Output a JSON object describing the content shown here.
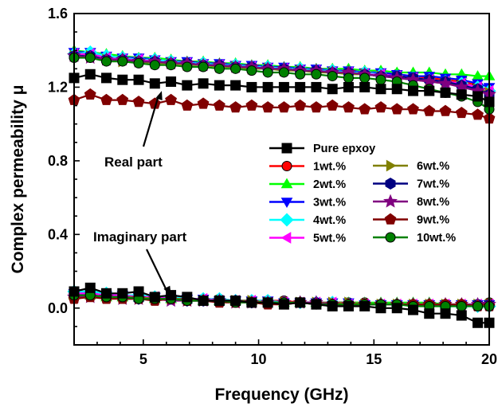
{
  "chart_data": {
    "type": "line",
    "xlabel": "Frequency (GHz)",
    "ylabel": "Complex permeability μ",
    "xlim": [
      2,
      20
    ],
    "ylim": [
      -0.2,
      1.6
    ],
    "xticks": [
      5,
      10,
      15,
      20
    ],
    "yticks": [
      0.0,
      0.4,
      0.8,
      1.2,
      1.6
    ],
    "ytick_labels": [
      "0.0",
      "0.4",
      "0.8",
      "1.2",
      "1.6"
    ],
    "grid": false,
    "legend_position": "center-right",
    "annotations": [
      {
        "text": "Real part",
        "target": [
          5.8,
          1.18
        ]
      },
      {
        "text": "Imaginary part",
        "target": [
          6.2,
          0.07
        ]
      }
    ],
    "x": [
      2.0,
      2.7,
      3.4,
      4.1,
      4.8,
      5.5,
      6.2,
      6.9,
      7.6,
      8.3,
      9.0,
      9.7,
      10.4,
      11.1,
      11.8,
      12.5,
      13.2,
      13.9,
      14.6,
      15.3,
      16.0,
      16.7,
      17.4,
      18.1,
      18.8,
      19.5,
      20.0
    ],
    "series": [
      {
        "name": "Pure epxoy",
        "color": "#000000",
        "marker": "square",
        "real": [
          1.25,
          1.27,
          1.25,
          1.24,
          1.24,
          1.22,
          1.23,
          1.21,
          1.22,
          1.21,
          1.21,
          1.2,
          1.2,
          1.2,
          1.2,
          1.2,
          1.19,
          1.2,
          1.2,
          1.19,
          1.19,
          1.18,
          1.18,
          1.17,
          1.16,
          1.15,
          1.12
        ],
        "imag": [
          0.09,
          0.11,
          0.08,
          0.08,
          0.09,
          0.06,
          0.07,
          0.06,
          0.04,
          0.04,
          0.04,
          0.03,
          0.03,
          0.02,
          0.03,
          0.02,
          0.01,
          0.01,
          0.01,
          0.0,
          0.0,
          -0.01,
          -0.03,
          -0.03,
          -0.04,
          -0.08,
          -0.08
        ]
      },
      {
        "name": "1wt.%",
        "color": "#ff0000",
        "marker": "circle",
        "real": [
          1.38,
          1.38,
          1.36,
          1.35,
          1.35,
          1.34,
          1.34,
          1.33,
          1.33,
          1.32,
          1.32,
          1.31,
          1.31,
          1.3,
          1.3,
          1.29,
          1.29,
          1.28,
          1.28,
          1.27,
          1.27,
          1.26,
          1.25,
          1.24,
          1.23,
          1.21,
          1.18
        ],
        "imag": [
          0.08,
          0.08,
          0.07,
          0.07,
          0.07,
          0.06,
          0.06,
          0.05,
          0.05,
          0.05,
          0.04,
          0.04,
          0.04,
          0.04,
          0.03,
          0.03,
          0.03,
          0.03,
          0.03,
          0.02,
          0.02,
          0.02,
          0.02,
          0.02,
          0.02,
          0.02,
          0.03
        ]
      },
      {
        "name": "2wt.%",
        "color": "#00ff00",
        "marker": "triangle-up",
        "real": [
          1.4,
          1.39,
          1.38,
          1.37,
          1.36,
          1.36,
          1.35,
          1.34,
          1.34,
          1.33,
          1.33,
          1.32,
          1.32,
          1.31,
          1.31,
          1.3,
          1.3,
          1.3,
          1.29,
          1.29,
          1.28,
          1.28,
          1.28,
          1.27,
          1.27,
          1.26,
          1.26
        ],
        "imag": [
          0.07,
          0.07,
          0.06,
          0.06,
          0.06,
          0.05,
          0.05,
          0.05,
          0.04,
          0.04,
          0.04,
          0.04,
          0.04,
          0.03,
          0.03,
          0.03,
          0.03,
          0.03,
          0.03,
          0.03,
          0.03,
          0.03,
          0.03,
          0.02,
          0.02,
          0.02,
          0.03
        ]
      },
      {
        "name": "3wt.%",
        "color": "#0000ff",
        "marker": "triangle-down",
        "real": [
          1.39,
          1.39,
          1.37,
          1.36,
          1.36,
          1.35,
          1.34,
          1.34,
          1.33,
          1.33,
          1.32,
          1.32,
          1.31,
          1.31,
          1.3,
          1.3,
          1.29,
          1.29,
          1.28,
          1.28,
          1.27,
          1.26,
          1.26,
          1.25,
          1.24,
          1.22,
          1.2
        ],
        "imag": [
          0.08,
          0.08,
          0.07,
          0.07,
          0.06,
          0.06,
          0.05,
          0.05,
          0.05,
          0.04,
          0.04,
          0.04,
          0.04,
          0.03,
          0.03,
          0.03,
          0.03,
          0.03,
          0.02,
          0.02,
          0.02,
          0.02,
          0.02,
          0.02,
          0.02,
          0.02,
          0.02
        ]
      },
      {
        "name": "4wt.%",
        "color": "#00ffff",
        "marker": "diamond",
        "real": [
          1.38,
          1.39,
          1.37,
          1.36,
          1.35,
          1.35,
          1.34,
          1.33,
          1.33,
          1.32,
          1.32,
          1.31,
          1.31,
          1.3,
          1.3,
          1.29,
          1.29,
          1.28,
          1.28,
          1.27,
          1.26,
          1.25,
          1.24,
          1.23,
          1.22,
          1.2,
          1.18
        ],
        "imag": [
          0.09,
          0.09,
          0.08,
          0.07,
          0.07,
          0.06,
          0.06,
          0.05,
          0.05,
          0.05,
          0.04,
          0.04,
          0.04,
          0.03,
          0.03,
          0.03,
          0.03,
          0.02,
          0.02,
          0.02,
          0.02,
          0.02,
          0.02,
          0.01,
          0.01,
          0.01,
          0.01
        ]
      },
      {
        "name": "5wt.%",
        "color": "#ff00ff",
        "marker": "triangle-left",
        "real": [
          1.38,
          1.38,
          1.36,
          1.35,
          1.35,
          1.34,
          1.33,
          1.33,
          1.32,
          1.32,
          1.31,
          1.31,
          1.3,
          1.3,
          1.29,
          1.29,
          1.28,
          1.28,
          1.27,
          1.27,
          1.26,
          1.25,
          1.24,
          1.23,
          1.22,
          1.2,
          1.18
        ],
        "imag": [
          0.08,
          0.08,
          0.07,
          0.07,
          0.06,
          0.06,
          0.05,
          0.05,
          0.05,
          0.04,
          0.04,
          0.04,
          0.03,
          0.03,
          0.03,
          0.03,
          0.03,
          0.02,
          0.02,
          0.02,
          0.02,
          0.02,
          0.02,
          0.02,
          0.02,
          0.02,
          0.02
        ]
      },
      {
        "name": "6wt.%",
        "color": "#808000",
        "marker": "triangle-right",
        "real": [
          1.37,
          1.37,
          1.35,
          1.34,
          1.34,
          1.33,
          1.33,
          1.32,
          1.32,
          1.31,
          1.31,
          1.3,
          1.3,
          1.29,
          1.29,
          1.28,
          1.28,
          1.27,
          1.27,
          1.26,
          1.25,
          1.24,
          1.23,
          1.22,
          1.21,
          1.19,
          1.17
        ],
        "imag": [
          0.07,
          0.07,
          0.06,
          0.06,
          0.06,
          0.05,
          0.05,
          0.05,
          0.04,
          0.04,
          0.04,
          0.04,
          0.03,
          0.03,
          0.03,
          0.03,
          0.03,
          0.03,
          0.02,
          0.02,
          0.02,
          0.02,
          0.02,
          0.02,
          0.02,
          0.02,
          0.02
        ]
      },
      {
        "name": "7wt.%",
        "color": "#000080",
        "marker": "hexagon",
        "real": [
          1.37,
          1.37,
          1.35,
          1.35,
          1.34,
          1.34,
          1.33,
          1.33,
          1.32,
          1.32,
          1.31,
          1.31,
          1.3,
          1.3,
          1.29,
          1.29,
          1.28,
          1.28,
          1.27,
          1.26,
          1.26,
          1.25,
          1.24,
          1.23,
          1.21,
          1.19,
          1.16
        ],
        "imag": [
          0.07,
          0.07,
          0.06,
          0.06,
          0.05,
          0.05,
          0.05,
          0.04,
          0.04,
          0.04,
          0.04,
          0.03,
          0.03,
          0.03,
          0.03,
          0.03,
          0.02,
          0.02,
          0.02,
          0.02,
          0.02,
          0.02,
          0.02,
          0.02,
          0.02,
          0.02,
          0.02
        ]
      },
      {
        "name": "8wt.%",
        "color": "#800080",
        "marker": "star",
        "real": [
          1.37,
          1.36,
          1.35,
          1.35,
          1.34,
          1.34,
          1.33,
          1.33,
          1.32,
          1.32,
          1.31,
          1.31,
          1.3,
          1.3,
          1.29,
          1.29,
          1.28,
          1.28,
          1.27,
          1.26,
          1.25,
          1.24,
          1.23,
          1.22,
          1.2,
          1.18,
          1.16
        ],
        "imag": [
          0.06,
          0.06,
          0.06,
          0.05,
          0.05,
          0.05,
          0.04,
          0.04,
          0.04,
          0.04,
          0.03,
          0.03,
          0.03,
          0.03,
          0.03,
          0.03,
          0.02,
          0.02,
          0.02,
          0.02,
          0.02,
          0.02,
          0.02,
          0.02,
          0.02,
          0.02,
          0.02
        ]
      },
      {
        "name": "9wt.%",
        "color": "#800000",
        "marker": "pentagon",
        "real": [
          1.13,
          1.16,
          1.13,
          1.13,
          1.12,
          1.11,
          1.13,
          1.1,
          1.11,
          1.1,
          1.09,
          1.1,
          1.09,
          1.09,
          1.1,
          1.09,
          1.1,
          1.09,
          1.08,
          1.09,
          1.08,
          1.08,
          1.07,
          1.07,
          1.06,
          1.05,
          1.03
        ],
        "imag": [
          0.05,
          0.06,
          0.05,
          0.05,
          0.05,
          0.04,
          0.05,
          0.04,
          0.04,
          0.03,
          0.03,
          0.03,
          0.02,
          0.02,
          0.03,
          0.02,
          0.02,
          0.02,
          0.02,
          0.02,
          0.02,
          0.02,
          0.02,
          0.02,
          0.02,
          0.01,
          0.01
        ]
      },
      {
        "name": "10wt.%",
        "color": "#008000",
        "marker": "circle",
        "real": [
          1.36,
          1.36,
          1.34,
          1.34,
          1.33,
          1.32,
          1.32,
          1.31,
          1.31,
          1.3,
          1.3,
          1.29,
          1.28,
          1.28,
          1.27,
          1.27,
          1.26,
          1.25,
          1.25,
          1.24,
          1.23,
          1.21,
          1.19,
          1.17,
          1.15,
          1.12,
          1.08
        ],
        "imag": [
          0.07,
          0.07,
          0.06,
          0.06,
          0.05,
          0.05,
          0.05,
          0.04,
          0.04,
          0.04,
          0.03,
          0.03,
          0.03,
          0.03,
          0.03,
          0.02,
          0.02,
          0.02,
          0.02,
          0.02,
          0.02,
          0.01,
          0.01,
          0.01,
          0.01,
          0.01,
          0.01
        ]
      }
    ]
  }
}
